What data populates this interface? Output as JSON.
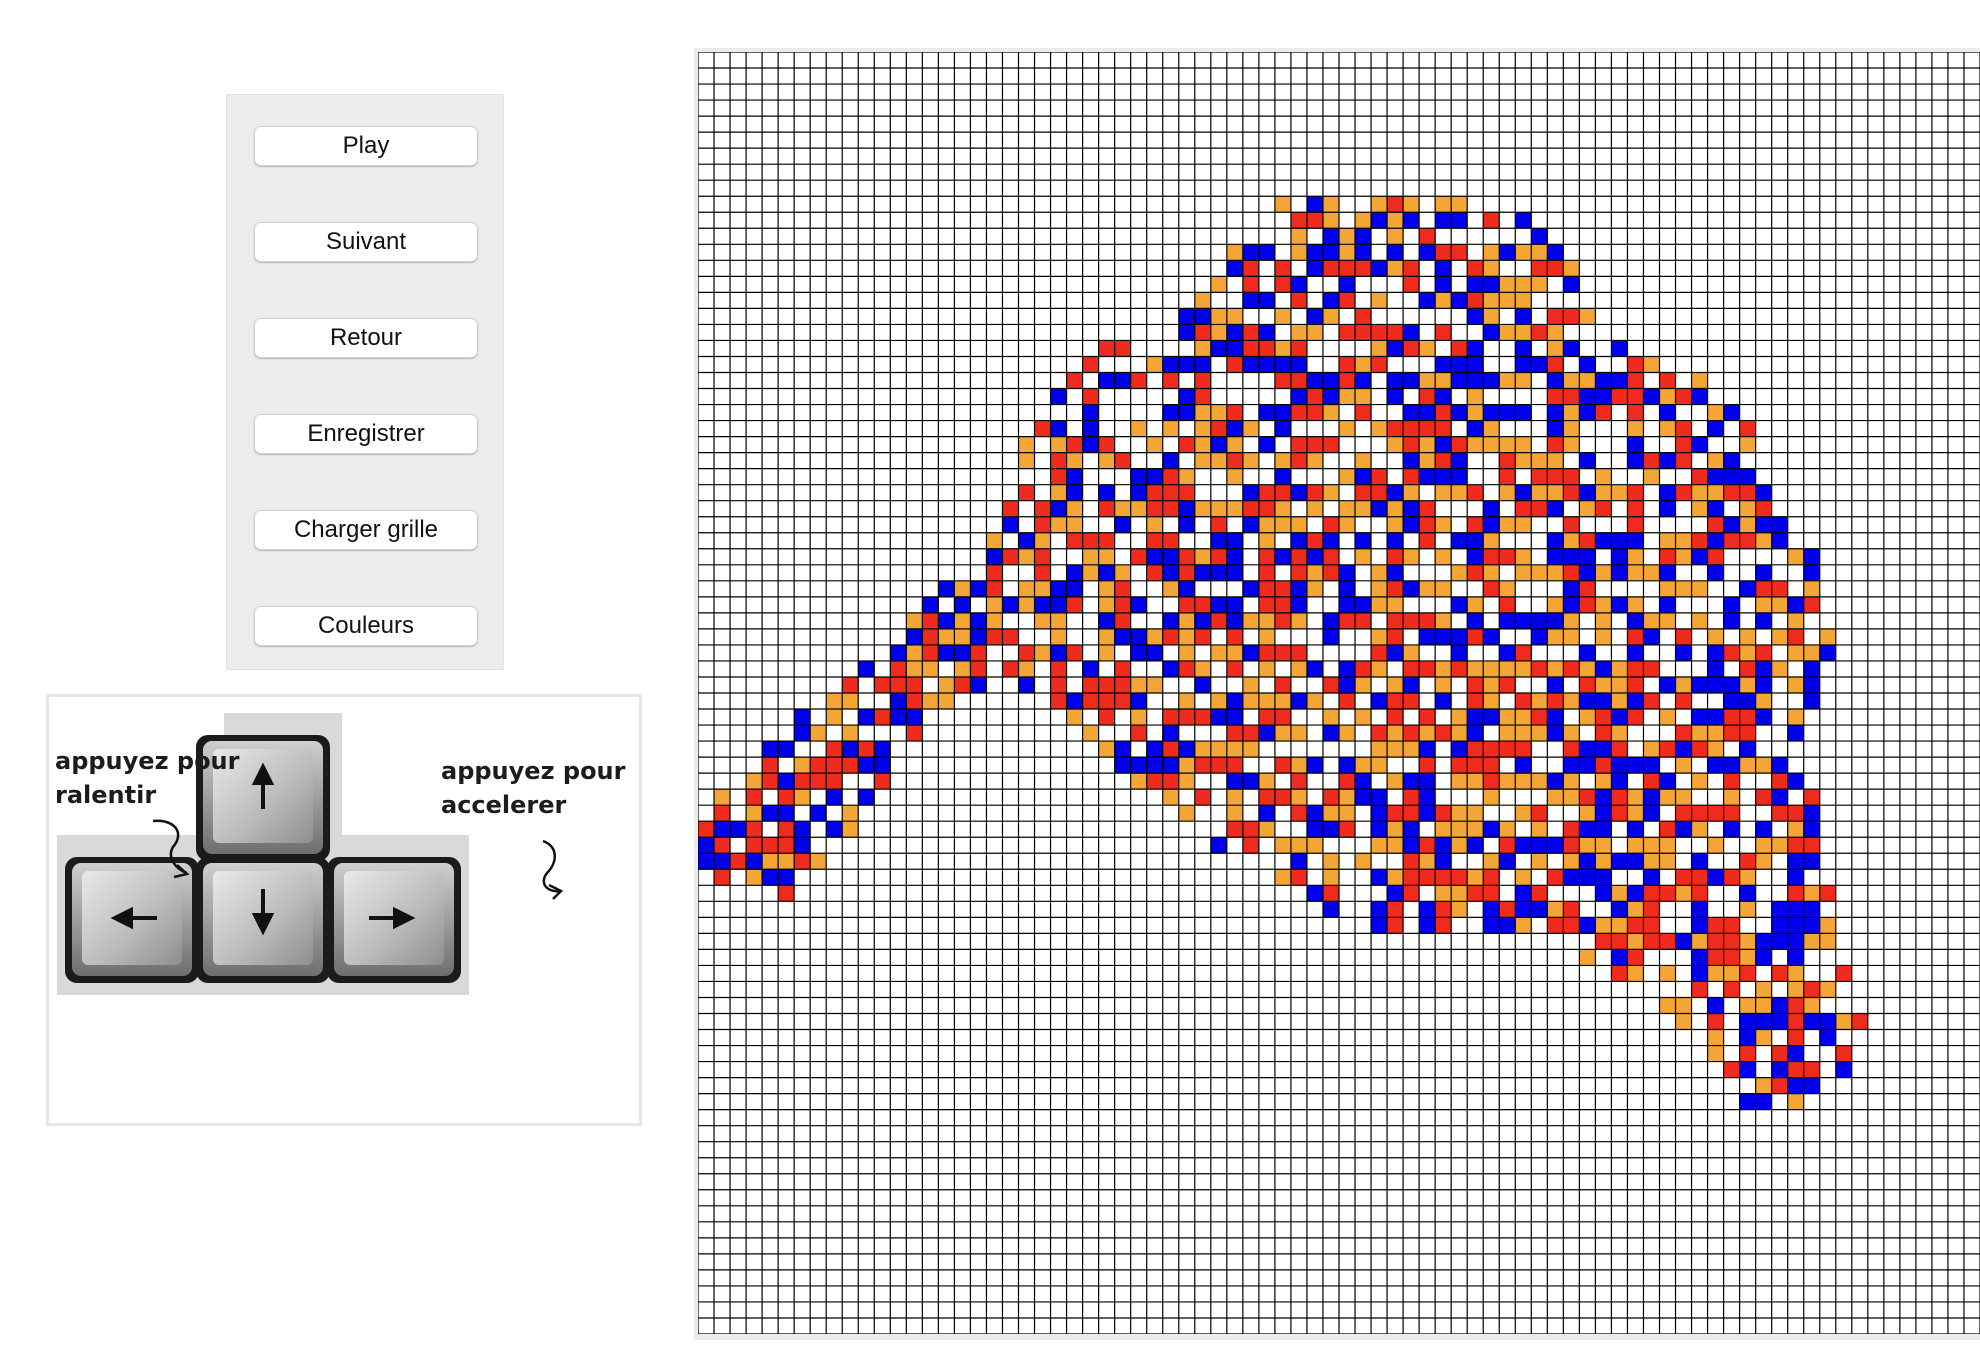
{
  "controls": {
    "buttons": [
      {
        "id": "play",
        "label": "Play"
      },
      {
        "id": "next",
        "label": "Suivant"
      },
      {
        "id": "back",
        "label": "Retour"
      },
      {
        "id": "save",
        "label": "Enregistrer"
      },
      {
        "id": "load",
        "label": "Charger grille"
      },
      {
        "id": "colors",
        "label": "Couleurs"
      }
    ]
  },
  "help": {
    "slow_text_line1": "appuyez pour",
    "slow_text_line2": "ralentir",
    "fast_text_line1": "appuyez pour",
    "fast_text_line2": "accelerer",
    "keys": [
      "arrow-up-key",
      "arrow-left-key",
      "arrow-down-key",
      "arrow-right-key"
    ]
  },
  "grid": {
    "columns": 80,
    "rows": 80,
    "cell_colors": {
      "blue": "#0000ee",
      "red": "#ee2b1c",
      "orange": "#f3a535",
      "empty": "#ffffff",
      "line": "#000000"
    },
    "pattern": "dense cluster of living cells in red, orange and blue forming a wing-shaped mass"
  },
  "colors": {
    "panel_bg": "#ececec",
    "button_bg": "#ffffff",
    "page_bg": "#ffffff"
  }
}
